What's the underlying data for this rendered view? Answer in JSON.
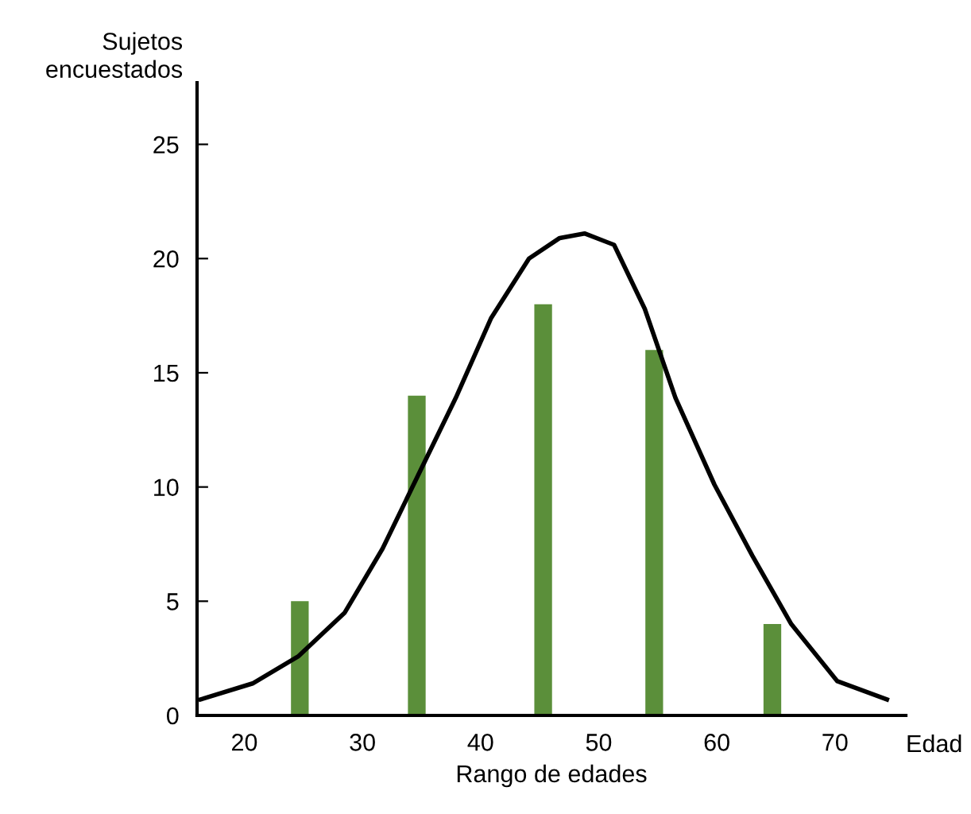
{
  "chart_data": {
    "type": "bar",
    "xlabel": "Rango de edades",
    "ylabel": "Sujetos\nencuestados",
    "annotations": [
      "Edad"
    ],
    "xlim": [
      16,
      76
    ],
    "ylim": [
      0,
      27.7
    ],
    "xticks": [
      20,
      30,
      40,
      50,
      60,
      70
    ],
    "yticks": [
      0,
      5,
      10,
      15,
      20,
      25
    ],
    "grid": false,
    "legend": false,
    "series": [
      {
        "color": "#5b8f3a",
        "x": [
          24.7,
          34.6,
          45.3,
          54.7,
          64.7
        ],
        "values": [
          5,
          14,
          18,
          16,
          4
        ]
      },
      {
        "type": "line",
        "color": "#000000",
        "x": [
          16.3,
          20.7,
          24.6,
          28.5,
          31.7,
          34.7,
          37.9,
          40.9,
          44.1,
          46.7,
          48.8,
          51.3,
          53.9,
          56.5,
          59.8,
          63.0,
          66.3,
          70.2,
          74.4
        ],
        "values": [
          0.7,
          1.4,
          2.6,
          4.5,
          7.3,
          10.5,
          13.9,
          17.4,
          20.0,
          20.9,
          21.1,
          20.6,
          17.8,
          13.9,
          10.1,
          7.0,
          4.0,
          1.5,
          0.7
        ]
      }
    ]
  }
}
